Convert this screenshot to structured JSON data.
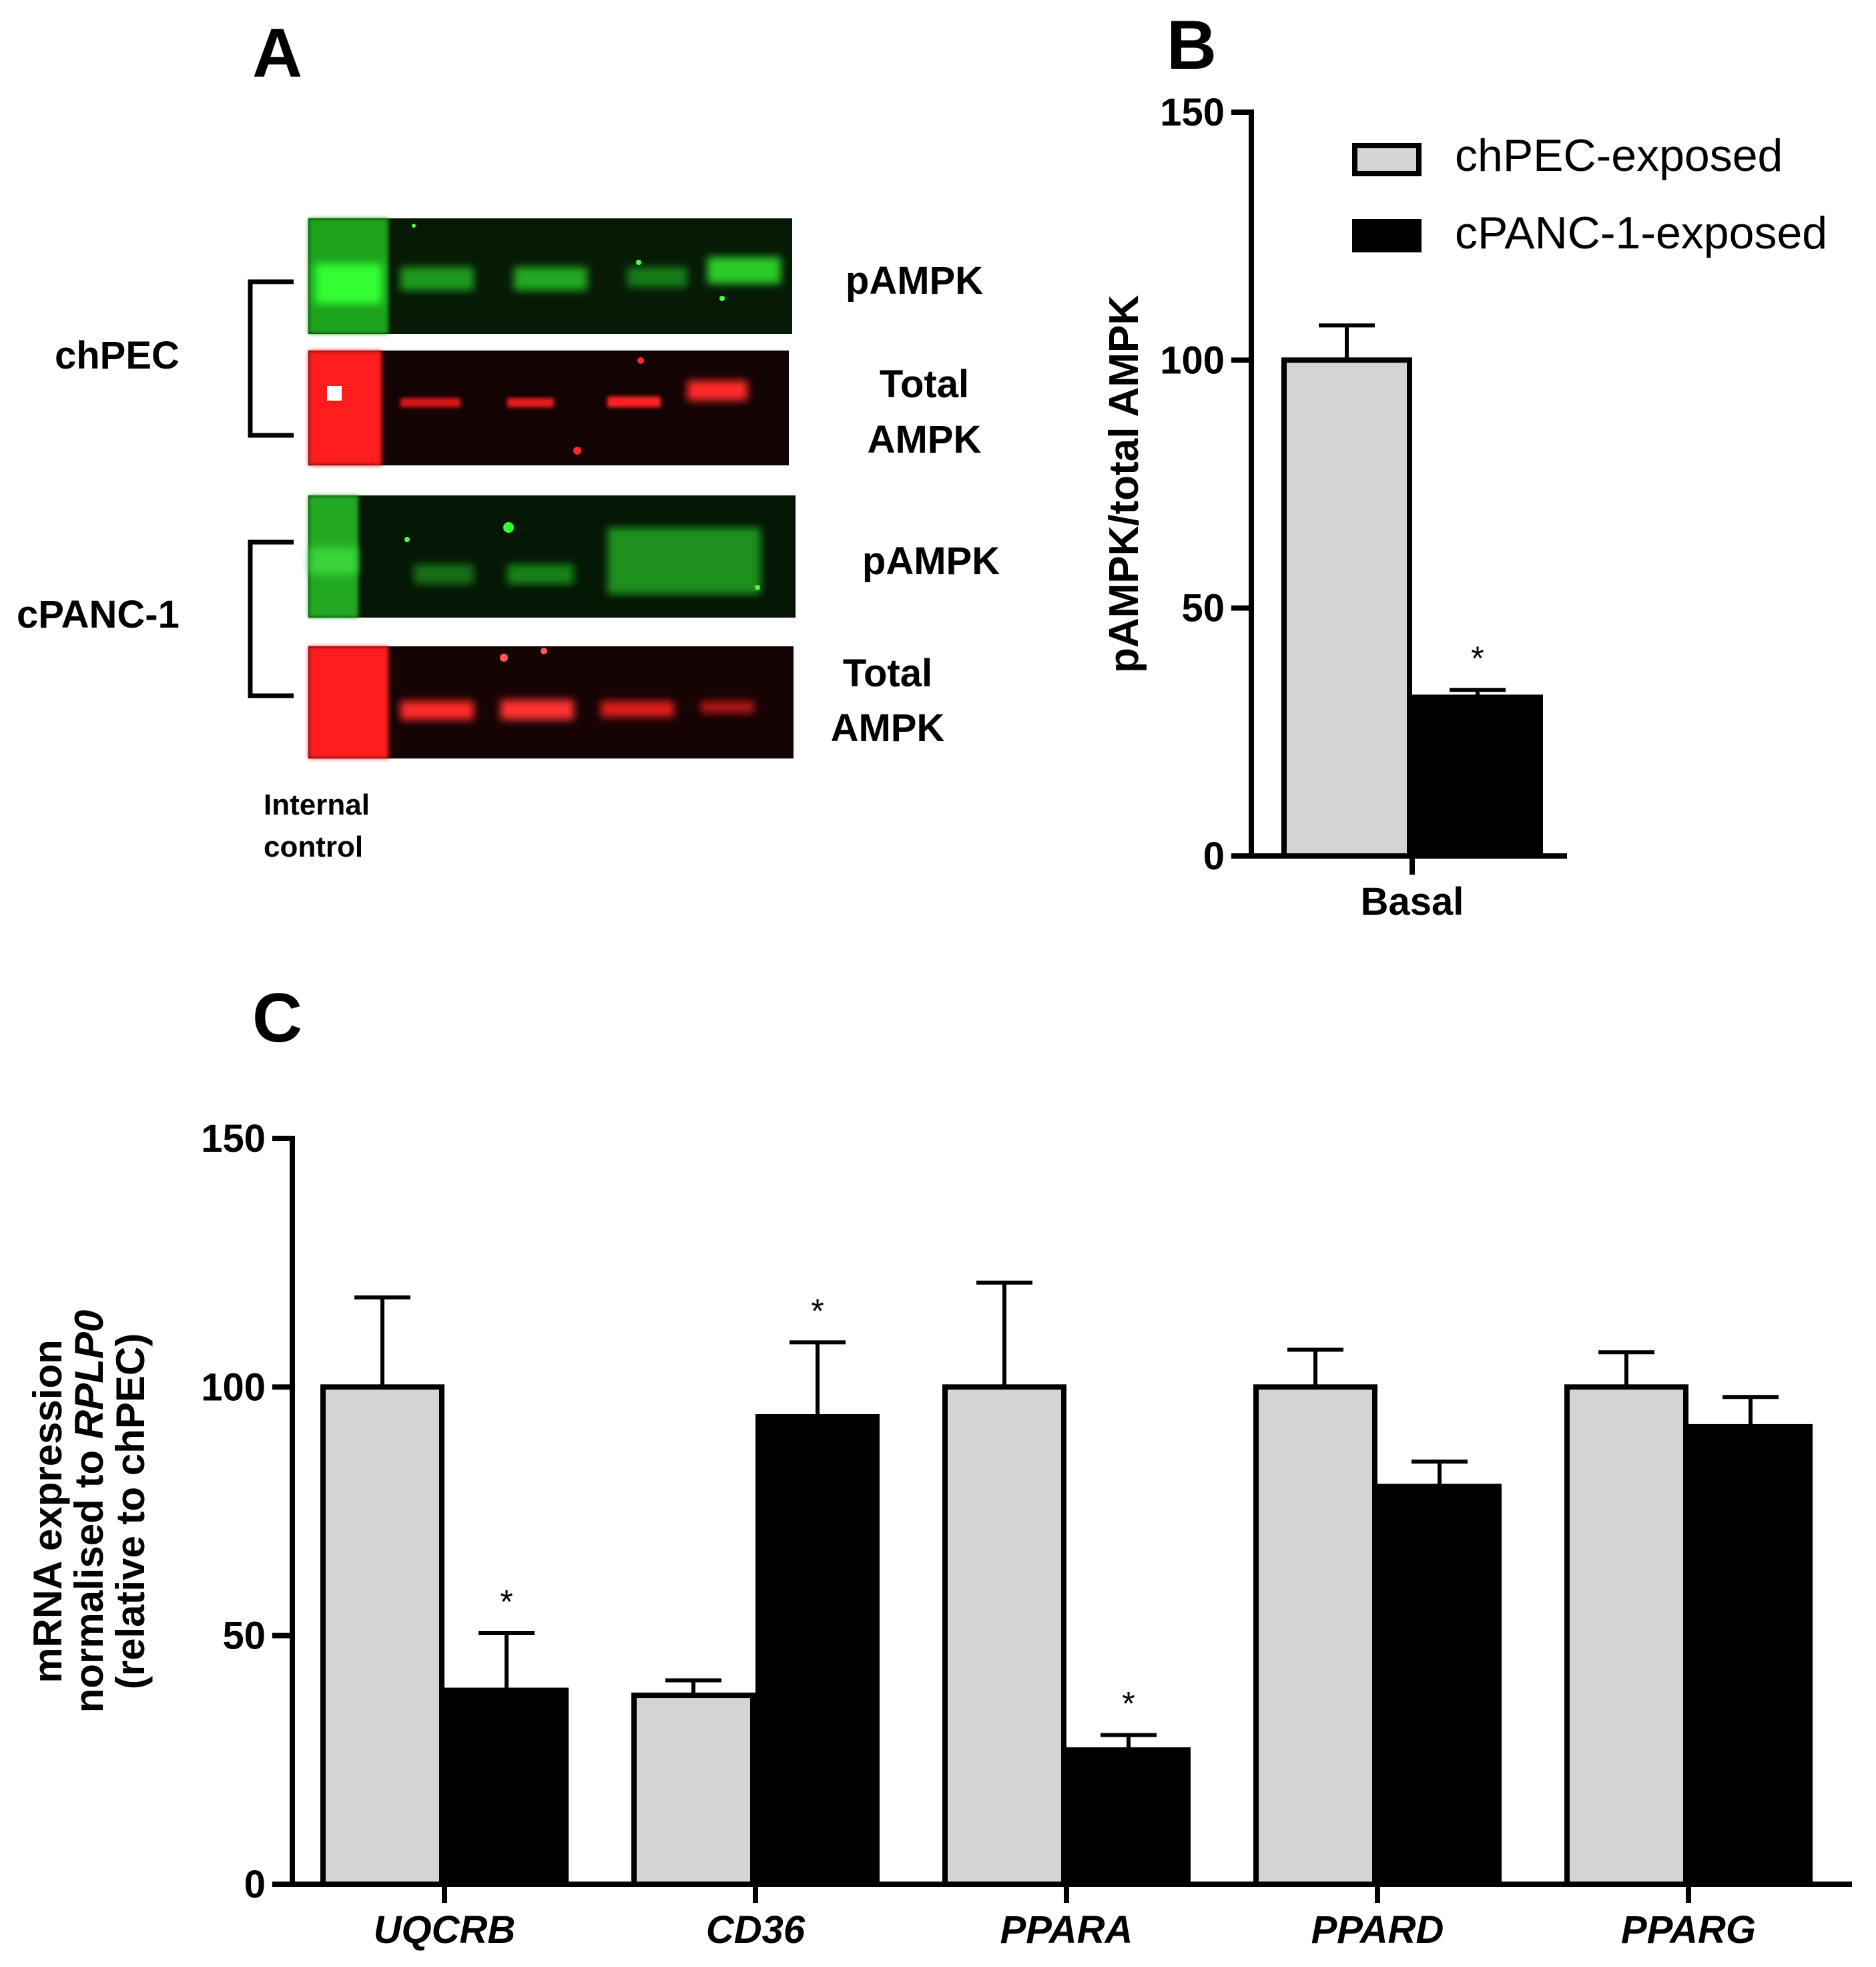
{
  "panels": {
    "a": "A",
    "b": "B",
    "c": "C"
  },
  "blot": {
    "groups": [
      {
        "label": "chPEC",
        "rows": [
          {
            "label": [
              "pAMPK"
            ],
            "color": "green"
          },
          {
            "label": [
              "Total",
              "AMPK"
            ],
            "color": "red"
          }
        ]
      },
      {
        "label": "cPANC-1",
        "rows": [
          {
            "label": [
              "pAMPK"
            ],
            "color": "green"
          },
          {
            "label": [
              "Total",
              "AMPK"
            ],
            "color": "red"
          }
        ]
      }
    ],
    "footer": [
      "Internal",
      "control"
    ]
  },
  "legend": {
    "items": [
      {
        "label": "chPEC-exposed",
        "fill": "#d4d4d4"
      },
      {
        "label": "cPANC-1-exposed",
        "fill": "#000000"
      }
    ]
  },
  "chart_data": [
    {
      "panel": "B",
      "type": "bar",
      "categories": [
        "Basal"
      ],
      "ylabel": "pAMPK/total AMPK",
      "ylim": [
        0,
        150
      ],
      "yticks": [
        0,
        50,
        100,
        150
      ],
      "series": [
        {
          "name": "chPEC-exposed",
          "values": [
            100
          ],
          "error": [
            7
          ],
          "fill": "#d4d4d4"
        },
        {
          "name": "cPANC-1-exposed",
          "values": [
            32
          ],
          "error": [
            1.5
          ],
          "fill": "#000000"
        }
      ],
      "annotations": [
        {
          "category": "Basal",
          "series": "cPANC-1-exposed",
          "text": "*"
        }
      ]
    },
    {
      "panel": "C",
      "type": "bar",
      "categories": [
        "UQCRB",
        "CD36",
        "PPARA",
        "PPARD",
        "PPARG"
      ],
      "ylabel": [
        "mRNA expression",
        "normalised to RPLP0",
        "(relative to chPEC)"
      ],
      "ylim": [
        0,
        150
      ],
      "yticks": [
        0,
        50,
        100,
        150
      ],
      "series": [
        {
          "name": "chPEC-exposed",
          "values": [
            100,
            38,
            100,
            100,
            100
          ],
          "error": [
            18,
            3,
            21,
            7.5,
            7
          ],
          "fill": "#d4d4d4"
        },
        {
          "name": "cPANC-1-exposed",
          "values": [
            39,
            94,
            27,
            80,
            92
          ],
          "error": [
            11.5,
            15,
            3,
            5,
            6
          ],
          "fill": "#000000"
        }
      ],
      "annotations": [
        {
          "category": "UQCRB",
          "series": "cPANC-1-exposed",
          "text": "*"
        },
        {
          "category": "CD36",
          "series": "cPANC-1-exposed",
          "text": "*"
        },
        {
          "category": "PPARA",
          "series": "cPANC-1-exposed",
          "text": "*"
        }
      ]
    }
  ]
}
